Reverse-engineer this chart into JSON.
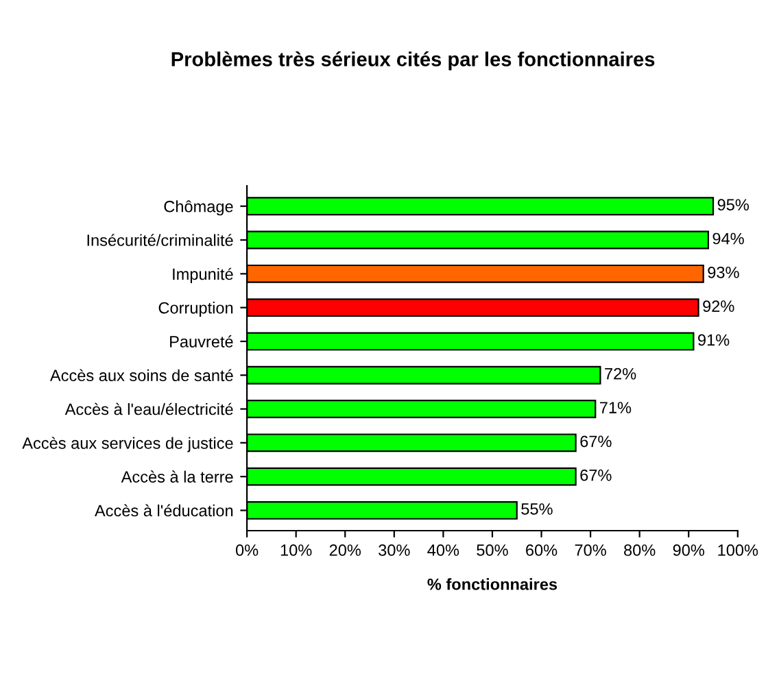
{
  "chart_data": {
    "type": "bar",
    "orientation": "horizontal",
    "title": "Problèmes très sérieux cités par les fonctionnaires",
    "xlabel": "% fonctionnaires",
    "categories": [
      "Chômage",
      "Insécurité/criminalité",
      "Impunité",
      "Corruption",
      "Pauvreté",
      "Accès aux soins de santé",
      "Accès à l'eau/électricité",
      "Accès aux services de justice",
      "Accès à la terre",
      "Accès à l'éducation"
    ],
    "values": [
      95,
      94,
      93,
      92,
      91,
      72,
      71,
      67,
      67,
      55
    ],
    "value_labels": [
      "95%",
      "94%",
      "93%",
      "92%",
      "91%",
      "72%",
      "71%",
      "67%",
      "67%",
      "55%"
    ],
    "colors": [
      "#00ff00",
      "#00ff00",
      "#ff6600",
      "#ff0000",
      "#00ff00",
      "#00ff00",
      "#00ff00",
      "#00ff00",
      "#00ff00",
      "#00ff00"
    ],
    "xlim": [
      0,
      100
    ],
    "xticks": [
      {
        "value": 0,
        "label": "0%"
      },
      {
        "value": 10,
        "label": "10%"
      },
      {
        "value": 20,
        "label": "20%"
      },
      {
        "value": 30,
        "label": "30%"
      },
      {
        "value": 40,
        "label": "40%"
      },
      {
        "value": 50,
        "label": "50%"
      },
      {
        "value": 60,
        "label": "60%"
      },
      {
        "value": 70,
        "label": "70%"
      },
      {
        "value": 80,
        "label": "80%"
      },
      {
        "value": 90,
        "label": "90%"
      },
      {
        "value": 100,
        "label": "100%"
      }
    ],
    "grid": false
  }
}
